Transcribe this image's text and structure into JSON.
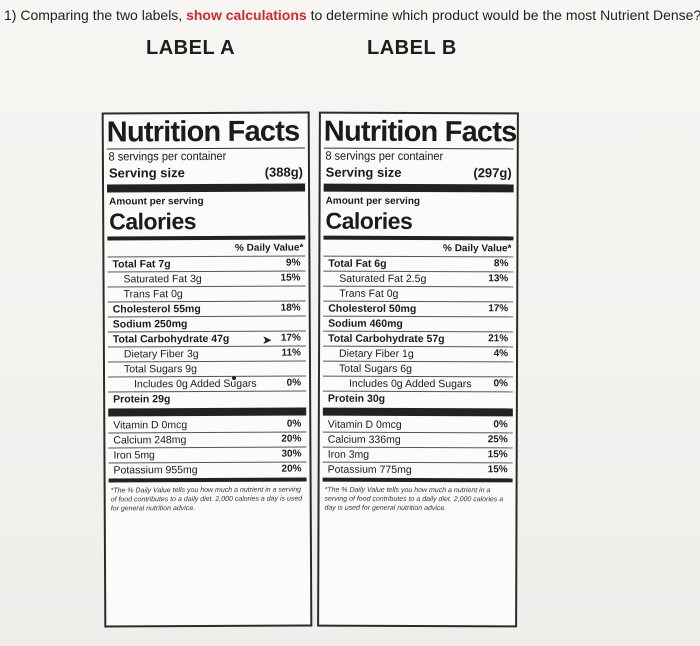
{
  "question": {
    "prefix": "1) Comparing the two labels, ",
    "highlight": "show calculations",
    "suffix": " to determine which product would be the most Nutrient Dense?"
  },
  "labels": {
    "a": "LABEL A",
    "b": "LABEL B"
  },
  "colors": {
    "highlight": "#d0292c"
  },
  "panelA": {
    "title": "Nutrition Facts",
    "servings": "8 servings per container",
    "serving_size_label": "Serving size",
    "serving_size_value": "(388g)",
    "amount": "Amount per serving",
    "calories": "Calories",
    "dv_header": "% Daily Value*",
    "rows": [
      {
        "name": "Total Fat 7g",
        "pct": "9%"
      },
      {
        "name": "Saturated Fat 3g",
        "pct": "15%"
      },
      {
        "name": "Trans Fat 0g",
        "pct": ""
      },
      {
        "name": "Cholesterol 55mg",
        "pct": "18%"
      },
      {
        "name": "Sodium 250mg",
        "pct": ""
      },
      {
        "name": "Total Carbohydrate 47g",
        "pct": "17%"
      },
      {
        "name": "Dietary Fiber 3g",
        "pct": "11%"
      },
      {
        "name": "Total Sugars 9g",
        "pct": ""
      },
      {
        "name": "Includes 0g Added Sugars",
        "pct": "0%"
      },
      {
        "name": "Protein 29g",
        "pct": ""
      },
      {
        "name": "Vitamin D 0mcg",
        "pct": "0%"
      },
      {
        "name": "Calcium 248mg",
        "pct": "20%"
      },
      {
        "name": "Iron 5mg",
        "pct": "30%"
      },
      {
        "name": "Potassium 955mg",
        "pct": "20%"
      }
    ],
    "footnote": "*The % Daily Value tells you how much a nutrient in a serving of food contributes to a daily diet. 2,000 calories a day is used for general nutrition advice."
  },
  "panelB": {
    "title": "Nutrition Facts",
    "servings": "8 servings per container",
    "serving_size_label": "Serving size",
    "serving_size_value": "(297g)",
    "amount": "Amount per serving",
    "calories": "Calories",
    "dv_header": "% Daily Value*",
    "rows": [
      {
        "name": "Total Fat 6g",
        "pct": "8%"
      },
      {
        "name": "Saturated Fat 2.5g",
        "pct": "13%"
      },
      {
        "name": "Trans Fat 0g",
        "pct": ""
      },
      {
        "name": "Cholesterol 50mg",
        "pct": "17%"
      },
      {
        "name": "Sodium 460mg",
        "pct": ""
      },
      {
        "name": "Total Carbohydrate 57g",
        "pct": "21%"
      },
      {
        "name": "Dietary Fiber 1g",
        "pct": "4%"
      },
      {
        "name": "Total Sugars 6g",
        "pct": ""
      },
      {
        "name": "Includes 0g Added Sugars",
        "pct": "0%"
      },
      {
        "name": "Protein 30g",
        "pct": ""
      },
      {
        "name": "Vitamin D 0mcg",
        "pct": "0%"
      },
      {
        "name": "Calcium 336mg",
        "pct": "25%"
      },
      {
        "name": "Iron 3mg",
        "pct": "15%"
      },
      {
        "name": "Potassium 775mg",
        "pct": "15%"
      }
    ],
    "footnote": "*The % Daily Value tells you how much a nutrient in a serving of food contributes to a daily diet. 2,000 calories a day is used for general nutrition advice."
  }
}
